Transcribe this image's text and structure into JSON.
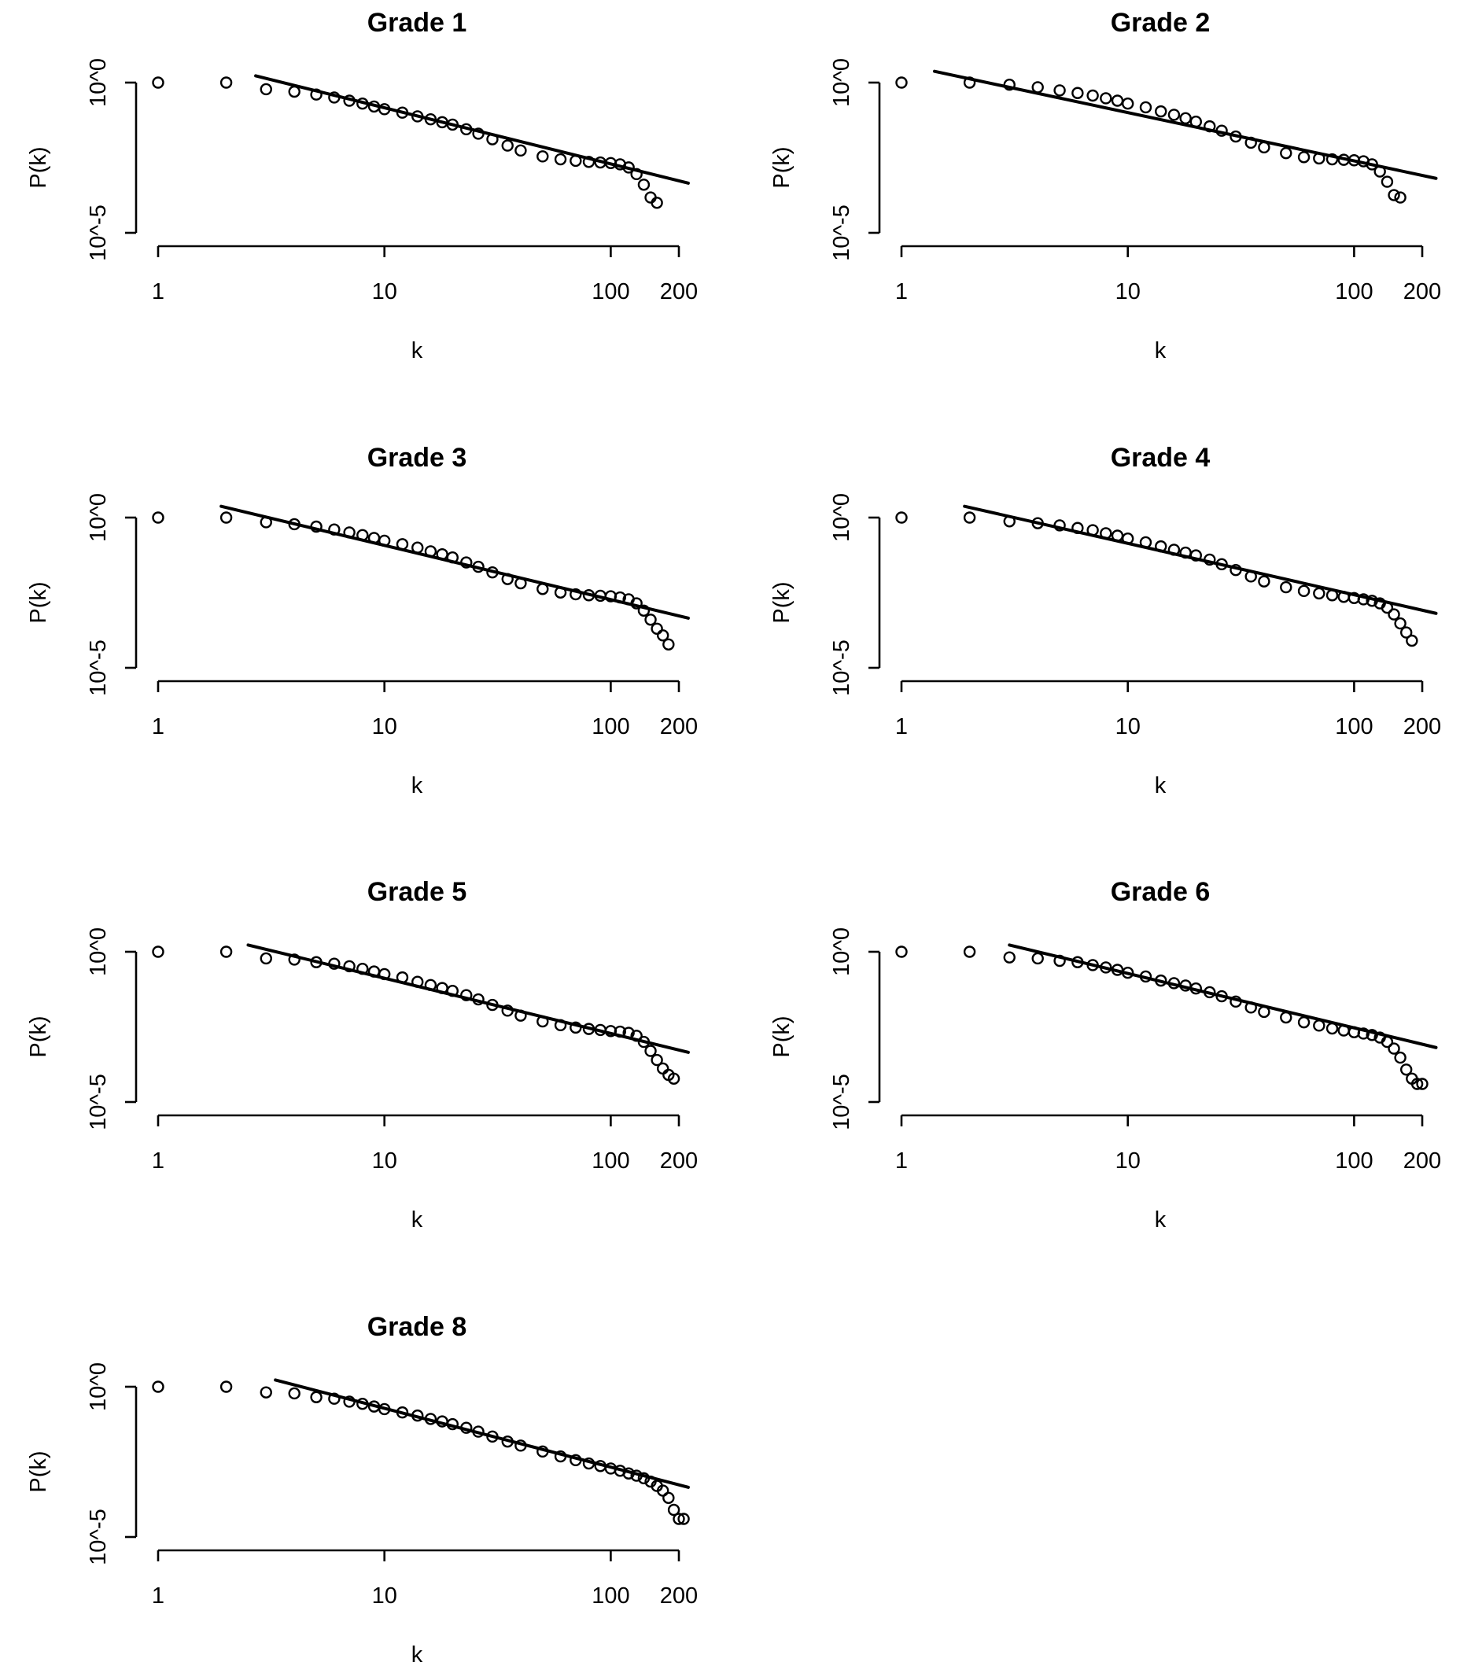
{
  "figure": {
    "panel_order": [
      "Grade 1",
      "Grade 2",
      "Grade 3",
      "Grade 4",
      "Grade 5",
      "Grade 6",
      "Grade 8"
    ]
  },
  "chart_data": [
    {
      "type": "scatter",
      "title": "Grade 1",
      "xlabel": "k",
      "ylabel": "P(k)",
      "xscale": "log",
      "yscale": "log",
      "x_ticks": [
        1,
        10,
        100,
        200
      ],
      "x_tick_labels": [
        "1",
        "10",
        "100",
        "200"
      ],
      "y_ticks": [
        1,
        1e-05
      ],
      "y_tick_labels": [
        "10^0",
        "10^-5"
      ],
      "xlim": [
        1,
        200
      ],
      "ylim": [
        1e-05,
        1
      ],
      "series": [
        {
          "name": "observed",
          "kind": "points",
          "x": [
            1,
            2,
            3,
            4,
            5,
            6,
            7,
            8,
            9,
            10,
            12,
            14,
            16,
            18,
            20,
            23,
            26,
            30,
            35,
            40,
            50,
            60,
            70,
            80,
            90,
            100,
            110,
            120,
            130,
            140,
            150,
            160
          ],
          "y": [
            1,
            1,
            0.6,
            0.5,
            0.4,
            0.32,
            0.25,
            0.2,
            0.16,
            0.13,
            0.1,
            0.075,
            0.06,
            0.048,
            0.04,
            0.028,
            0.02,
            0.013,
            0.008,
            0.0055,
            0.0035,
            0.0028,
            0.0025,
            0.0023,
            0.0022,
            0.0021,
            0.0019,
            0.0015,
            0.0009,
            0.0004,
            0.00015,
            0.0001
          ]
        },
        {
          "name": "fit",
          "kind": "line",
          "x": [
            2.7,
            220
          ],
          "y": [
            1.68,
            0.00045
          ]
        }
      ]
    },
    {
      "type": "scatter",
      "title": "Grade 2",
      "xlabel": "k",
      "ylabel": "P(k)",
      "xscale": "log",
      "yscale": "log",
      "x_ticks": [
        1,
        10,
        100,
        200
      ],
      "x_tick_labels": [
        "1",
        "10",
        "100",
        "200"
      ],
      "y_ticks": [
        1,
        1e-05
      ],
      "y_tick_labels": [
        "10^0",
        "10^-5"
      ],
      "xlim": [
        1,
        200
      ],
      "ylim": [
        1e-05,
        1
      ],
      "series": [
        {
          "name": "observed",
          "kind": "points",
          "x": [
            1,
            2,
            3,
            4,
            5,
            6,
            7,
            8,
            9,
            10,
            12,
            14,
            16,
            18,
            20,
            23,
            26,
            30,
            35,
            40,
            50,
            60,
            70,
            80,
            90,
            100,
            110,
            120,
            130,
            140,
            150,
            160
          ],
          "y": [
            1,
            1,
            0.85,
            0.7,
            0.55,
            0.45,
            0.37,
            0.3,
            0.25,
            0.2,
            0.15,
            0.11,
            0.085,
            0.065,
            0.05,
            0.035,
            0.025,
            0.016,
            0.01,
            0.007,
            0.0045,
            0.0033,
            0.003,
            0.0028,
            0.0027,
            0.0026,
            0.0024,
            0.0019,
            0.0011,
            0.0005,
            0.00018,
            0.00015
          ]
        },
        {
          "name": "fit",
          "kind": "line",
          "x": [
            1.4,
            230
          ],
          "y": [
            2.37,
            0.00065
          ]
        }
      ]
    },
    {
      "type": "scatter",
      "title": "Grade 3",
      "xlabel": "k",
      "ylabel": "P(k)",
      "xscale": "log",
      "yscale": "log",
      "x_ticks": [
        1,
        10,
        100,
        200
      ],
      "x_tick_labels": [
        "1",
        "10",
        "100",
        "200"
      ],
      "y_ticks": [
        1,
        1e-05
      ],
      "y_tick_labels": [
        "10^0",
        "10^-5"
      ],
      "xlim": [
        1,
        200
      ],
      "ylim": [
        1e-05,
        1
      ],
      "series": [
        {
          "name": "observed",
          "kind": "points",
          "x": [
            1,
            2,
            3,
            4,
            5,
            6,
            7,
            8,
            9,
            10,
            12,
            14,
            16,
            18,
            20,
            23,
            26,
            30,
            35,
            40,
            50,
            60,
            70,
            80,
            90,
            100,
            110,
            120,
            130,
            140,
            150,
            160,
            170,
            180
          ],
          "y": [
            1,
            1,
            0.7,
            0.6,
            0.5,
            0.4,
            0.32,
            0.26,
            0.21,
            0.17,
            0.13,
            0.1,
            0.075,
            0.06,
            0.047,
            0.032,
            0.023,
            0.015,
            0.009,
            0.0065,
            0.0042,
            0.0032,
            0.0028,
            0.0026,
            0.0025,
            0.0024,
            0.0022,
            0.0019,
            0.0014,
            0.0008,
            0.0004,
            0.0002,
            0.00012,
            6e-05
          ]
        },
        {
          "name": "fit",
          "kind": "line",
          "x": [
            1.9,
            220
          ],
          "y": [
            2.37,
            0.00045
          ]
        }
      ]
    },
    {
      "type": "scatter",
      "title": "Grade 4",
      "xlabel": "k",
      "ylabel": "P(k)",
      "xscale": "log",
      "yscale": "log",
      "x_ticks": [
        1,
        10,
        100,
        200
      ],
      "x_tick_labels": [
        "1",
        "10",
        "100",
        "200"
      ],
      "y_ticks": [
        1,
        1e-05
      ],
      "y_tick_labels": [
        "10^0",
        "10^-5"
      ],
      "xlim": [
        1,
        200
      ],
      "ylim": [
        1e-05,
        1
      ],
      "series": [
        {
          "name": "observed",
          "kind": "points",
          "x": [
            1,
            2,
            3,
            4,
            5,
            6,
            7,
            8,
            9,
            10,
            12,
            14,
            16,
            18,
            20,
            23,
            26,
            30,
            35,
            40,
            50,
            60,
            70,
            80,
            90,
            100,
            110,
            120,
            130,
            140,
            150,
            160,
            170,
            180
          ],
          "y": [
            1,
            1,
            0.75,
            0.65,
            0.55,
            0.45,
            0.38,
            0.3,
            0.25,
            0.2,
            0.15,
            0.11,
            0.085,
            0.068,
            0.055,
            0.04,
            0.028,
            0.018,
            0.011,
            0.0075,
            0.0048,
            0.0036,
            0.003,
            0.0026,
            0.0023,
            0.0021,
            0.0019,
            0.0017,
            0.0014,
            0.001,
            0.0006,
            0.0003,
            0.00015,
            8e-05
          ]
        },
        {
          "name": "fit",
          "kind": "line",
          "x": [
            1.9,
            230
          ],
          "y": [
            2.37,
            0.00065
          ]
        }
      ]
    },
    {
      "type": "scatter",
      "title": "Grade 5",
      "xlabel": "k",
      "ylabel": "P(k)",
      "xscale": "log",
      "yscale": "log",
      "x_ticks": [
        1,
        10,
        100,
        200
      ],
      "x_tick_labels": [
        "1",
        "10",
        "100",
        "200"
      ],
      "y_ticks": [
        1,
        1e-05
      ],
      "y_tick_labels": [
        "10^0",
        "10^-5"
      ],
      "xlim": [
        1,
        200
      ],
      "ylim": [
        1e-05,
        1
      ],
      "series": [
        {
          "name": "observed",
          "kind": "points",
          "x": [
            1,
            2,
            3,
            4,
            5,
            6,
            7,
            8,
            9,
            10,
            12,
            14,
            16,
            18,
            20,
            23,
            26,
            30,
            35,
            40,
            50,
            60,
            70,
            80,
            90,
            100,
            110,
            120,
            130,
            140,
            150,
            160,
            170,
            180,
            190
          ],
          "y": [
            1,
            1,
            0.6,
            0.55,
            0.45,
            0.4,
            0.33,
            0.27,
            0.22,
            0.18,
            0.14,
            0.1,
            0.078,
            0.062,
            0.05,
            0.036,
            0.026,
            0.017,
            0.011,
            0.0075,
            0.0048,
            0.0036,
            0.003,
            0.0027,
            0.0025,
            0.0023,
            0.0022,
            0.002,
            0.0016,
            0.001,
            0.0005,
            0.00025,
            0.00013,
            8e-05,
            6e-05
          ]
        },
        {
          "name": "fit",
          "kind": "line",
          "x": [
            2.5,
            220
          ],
          "y": [
            1.68,
            0.00045
          ]
        }
      ]
    },
    {
      "type": "scatter",
      "title": "Grade 6",
      "xlabel": "k",
      "ylabel": "P(k)",
      "xscale": "log",
      "yscale": "log",
      "x_ticks": [
        1,
        10,
        100,
        200
      ],
      "x_tick_labels": [
        "1",
        "10",
        "100",
        "200"
      ],
      "y_ticks": [
        1,
        1e-05
      ],
      "y_tick_labels": [
        "10^0",
        "10^-5"
      ],
      "xlim": [
        1,
        200
      ],
      "ylim": [
        1e-05,
        1
      ],
      "series": [
        {
          "name": "observed",
          "kind": "points",
          "x": [
            1,
            2,
            3,
            4,
            5,
            6,
            7,
            8,
            9,
            10,
            12,
            14,
            16,
            18,
            20,
            23,
            26,
            30,
            35,
            40,
            50,
            60,
            70,
            80,
            90,
            100,
            110,
            120,
            130,
            140,
            150,
            160,
            170,
            180,
            190,
            200
          ],
          "y": [
            1,
            1,
            0.65,
            0.6,
            0.5,
            0.45,
            0.36,
            0.3,
            0.25,
            0.2,
            0.15,
            0.11,
            0.09,
            0.075,
            0.06,
            0.045,
            0.033,
            0.022,
            0.014,
            0.01,
            0.0065,
            0.0045,
            0.0035,
            0.0028,
            0.0024,
            0.0021,
            0.0019,
            0.0017,
            0.0014,
            0.001,
            0.0006,
            0.0003,
            0.00012,
            6e-05,
            4e-05,
            4e-05
          ]
        },
        {
          "name": "fit",
          "kind": "line",
          "x": [
            3,
            230
          ],
          "y": [
            1.68,
            0.00065
          ]
        }
      ]
    },
    {
      "type": "scatter",
      "title": "Grade 8",
      "xlabel": "k",
      "ylabel": "P(k)",
      "xscale": "log",
      "yscale": "log",
      "x_ticks": [
        1,
        10,
        100,
        200
      ],
      "x_tick_labels": [
        "1",
        "10",
        "100",
        "200"
      ],
      "y_ticks": [
        1,
        1e-05
      ],
      "y_tick_labels": [
        "10^0",
        "10^-5"
      ],
      "xlim": [
        1,
        200
      ],
      "ylim": [
        1e-05,
        1
      ],
      "series": [
        {
          "name": "observed",
          "kind": "points",
          "x": [
            1,
            2,
            3,
            4,
            5,
            6,
            7,
            8,
            9,
            10,
            12,
            14,
            16,
            18,
            20,
            23,
            26,
            30,
            35,
            40,
            50,
            60,
            70,
            80,
            90,
            100,
            110,
            120,
            130,
            140,
            150,
            160,
            170,
            180,
            190,
            200,
            210
          ],
          "y": [
            1,
            1,
            0.65,
            0.6,
            0.45,
            0.4,
            0.32,
            0.27,
            0.22,
            0.18,
            0.14,
            0.11,
            0.085,
            0.07,
            0.057,
            0.043,
            0.032,
            0.022,
            0.015,
            0.011,
            0.007,
            0.0048,
            0.0036,
            0.0028,
            0.0023,
            0.0019,
            0.0016,
            0.0013,
            0.0011,
            0.0009,
            0.0007,
            0.0005,
            0.00035,
            0.0002,
            8e-05,
            4e-05,
            4e-05
          ]
        },
        {
          "name": "fit",
          "kind": "line",
          "x": [
            3.3,
            220
          ],
          "y": [
            1.68,
            0.00045
          ]
        }
      ]
    }
  ]
}
